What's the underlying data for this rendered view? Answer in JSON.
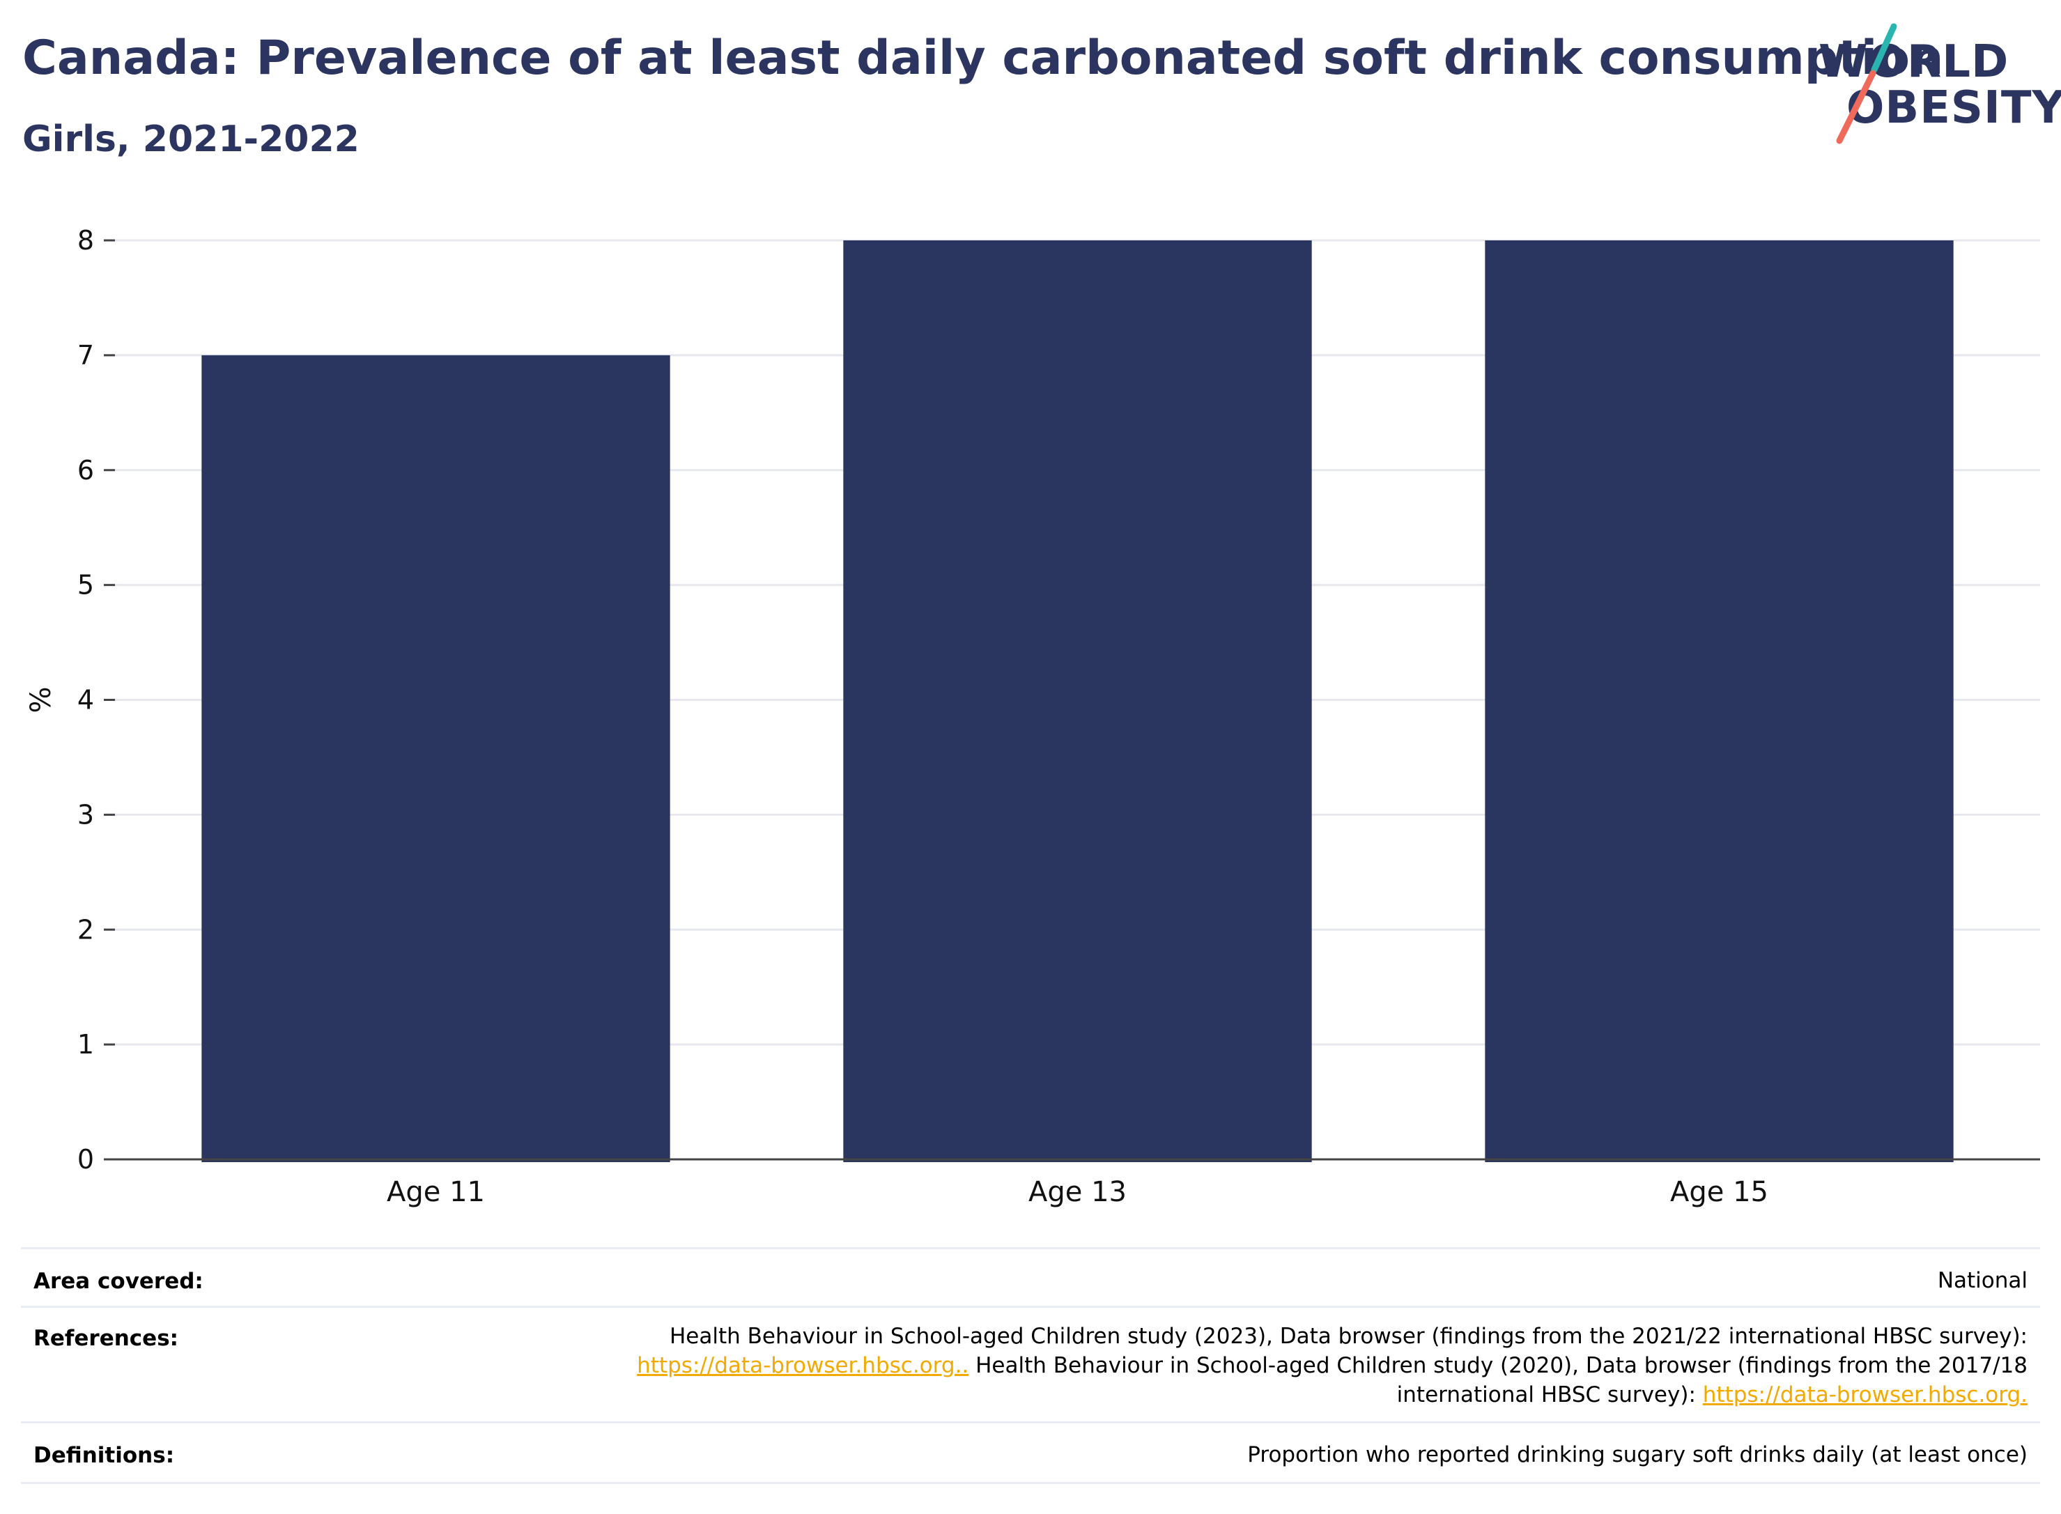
{
  "title": "Canada: Prevalence of at least daily carbonated soft drink consumption",
  "subtitle": "Girls, 2021-2022",
  "logo": {
    "line1": "WORLD",
    "line2": "OBESITY",
    "colors": {
      "teal": "#2bb5b0",
      "coral": "#ef6a5a",
      "navy": "#2b3560"
    }
  },
  "chart_data": {
    "type": "bar",
    "categories": [
      "Age 11",
      "Age 13",
      "Age 15"
    ],
    "values": [
      7,
      8,
      8
    ],
    "ylabel": "%",
    "xlabel": "",
    "ylim": [
      0,
      8
    ],
    "yticks": [
      "0",
      "1",
      "2",
      "3",
      "4",
      "5",
      "6",
      "7",
      "8"
    ],
    "bar_color": "#2b3660",
    "grid": true
  },
  "meta": {
    "area": {
      "label": "Area covered:",
      "value": "National"
    },
    "references": {
      "label": "References:",
      "line1": "Health Behaviour in School-aged Children study (2023), Data browser (findings from the 2021/22 international HBSC survey):",
      "link1": "https://data-browser.hbsc.org..",
      "line2_rest": " Health Behaviour in School-aged Children study (2020), Data browser (findings from the 2017/18",
      "line3_text": "international HBSC survey): ",
      "link2": "https://data-browser.hbsc.org."
    },
    "definitions": {
      "label": "Definitions:",
      "value": "Proportion who reported drinking sugary soft drinks daily (at least once)"
    }
  }
}
